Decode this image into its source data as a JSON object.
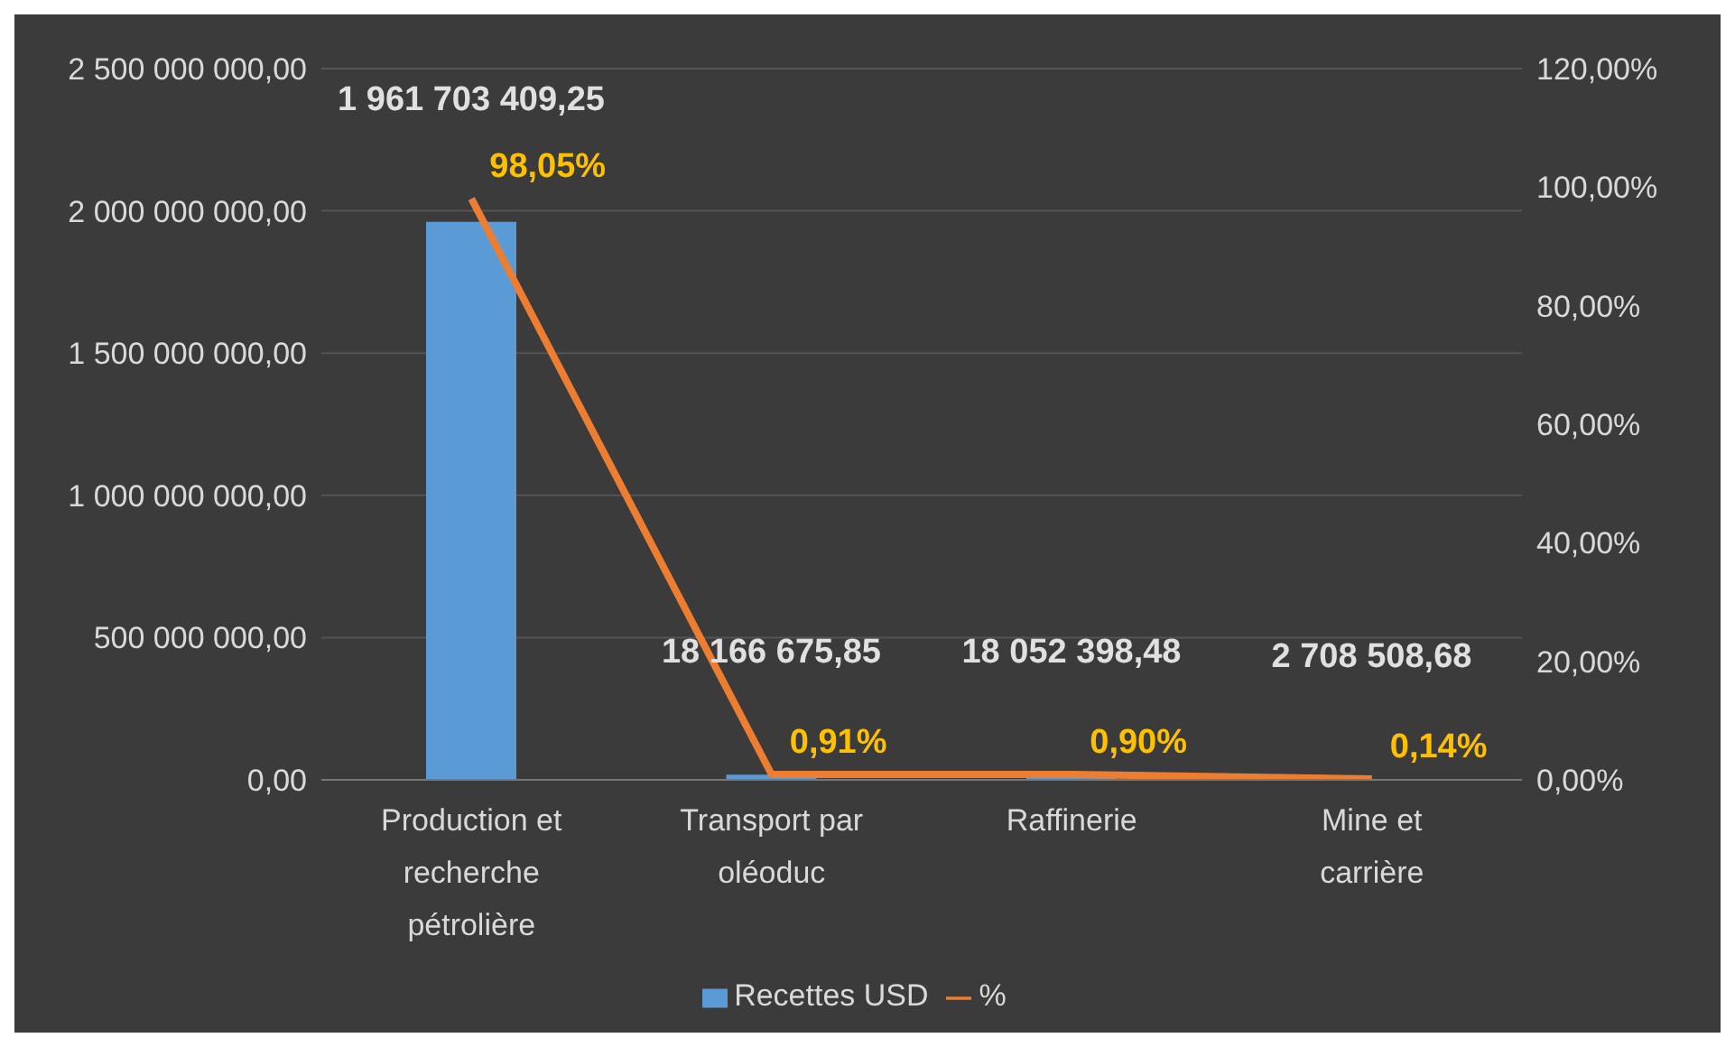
{
  "chart_data": {
    "type": "bar",
    "categories": [
      "Production et recherche pétrolière",
      "Transport par oléoduc",
      "Raffinerie",
      "Mine et carrière"
    ],
    "series": [
      {
        "name": "Recettes USD",
        "color": "#5b9bd5",
        "values": [
          1961703409.25,
          18166675.85,
          18052398.48,
          2708508.68
        ],
        "value_labels": [
          "1 961 703 409,25",
          "18 166 675,85",
          "18 052 398,48",
          "2 708 508,68"
        ]
      },
      {
        "name": "%",
        "type": "line",
        "axis": "y2",
        "color": "#ed7d31",
        "values": [
          98.05,
          0.91,
          0.9,
          0.14
        ],
        "value_labels": [
          "98,05%",
          "0,91%",
          "0,90%",
          "0,14%"
        ]
      }
    ],
    "ylim": [
      0,
      2500000000
    ],
    "yticks": [
      {
        "value": 0,
        "label": "0,00"
      },
      {
        "value": 500000000,
        "label": "500 000 000,00"
      },
      {
        "value": 1000000000,
        "label": "1 000 000 000,00"
      },
      {
        "value": 1500000000,
        "label": "1 500 000 000,00"
      },
      {
        "value": 2000000000,
        "label": "2 000 000 000,00"
      },
      {
        "value": 2500000000,
        "label": "2 500 000 000,00"
      }
    ],
    "y2lim": [
      0,
      120
    ],
    "y2ticks": [
      {
        "value": 0,
        "label": "0,00%"
      },
      {
        "value": 20,
        "label": "20,00%"
      },
      {
        "value": 40,
        "label": "40,00%"
      },
      {
        "value": 60,
        "label": "60,00%"
      },
      {
        "value": 80,
        "label": "80,00%"
      },
      {
        "value": 100,
        "label": "100,00%"
      },
      {
        "value": 120,
        "label": "120,00%"
      }
    ],
    "grid": "y",
    "legend": "bottom",
    "marker": "none"
  }
}
